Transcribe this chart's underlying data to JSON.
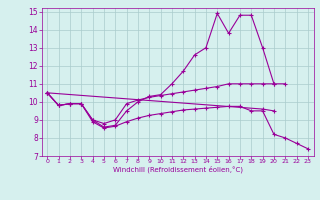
{
  "xlabel": "Windchill (Refroidissement éolien,°C)",
  "background_color": "#d6f0ee",
  "line_color": "#990099",
  "grid_color": "#aacccc",
  "x_values": [
    0,
    1,
    2,
    3,
    4,
    5,
    6,
    7,
    8,
    9,
    10,
    11,
    12,
    13,
    14,
    15,
    16,
    17,
    18,
    19,
    20,
    21,
    22,
    23
  ],
  "line1": [
    10.5,
    9.8,
    9.9,
    9.9,
    9.0,
    8.6,
    8.7,
    9.5,
    10.0,
    10.3,
    10.4,
    11.0,
    11.7,
    12.6,
    13.0,
    14.9,
    13.8,
    14.8,
    14.8,
    13.0,
    11.0,
    null,
    null,
    null
  ],
  "line2": [
    10.5,
    9.8,
    9.9,
    9.9,
    9.0,
    8.8,
    9.0,
    9.9,
    10.1,
    10.25,
    10.35,
    10.45,
    10.55,
    10.65,
    10.75,
    10.85,
    11.0,
    11.0,
    11.0,
    11.0,
    11.0,
    11.0,
    null,
    null
  ],
  "line3": [
    10.5,
    null,
    null,
    null,
    null,
    null,
    null,
    null,
    null,
    null,
    null,
    null,
    null,
    null,
    null,
    null,
    null,
    null,
    null,
    9.6,
    9.5,
    null,
    null,
    null
  ],
  "line4": [
    10.5,
    9.8,
    9.9,
    9.9,
    8.9,
    8.55,
    8.65,
    8.9,
    9.1,
    9.25,
    9.35,
    9.45,
    9.55,
    9.6,
    9.65,
    9.7,
    9.75,
    9.75,
    9.5,
    9.5,
    8.2,
    8.0,
    7.7,
    7.4
  ],
  "xlim": [
    -0.5,
    23.5
  ],
  "ylim": [
    7,
    15.2
  ],
  "yticks": [
    7,
    8,
    9,
    10,
    11,
    12,
    13,
    14,
    15
  ],
  "xticks": [
    0,
    1,
    2,
    3,
    4,
    5,
    6,
    7,
    8,
    9,
    10,
    11,
    12,
    13,
    14,
    15,
    16,
    17,
    18,
    19,
    20,
    21,
    22,
    23
  ]
}
